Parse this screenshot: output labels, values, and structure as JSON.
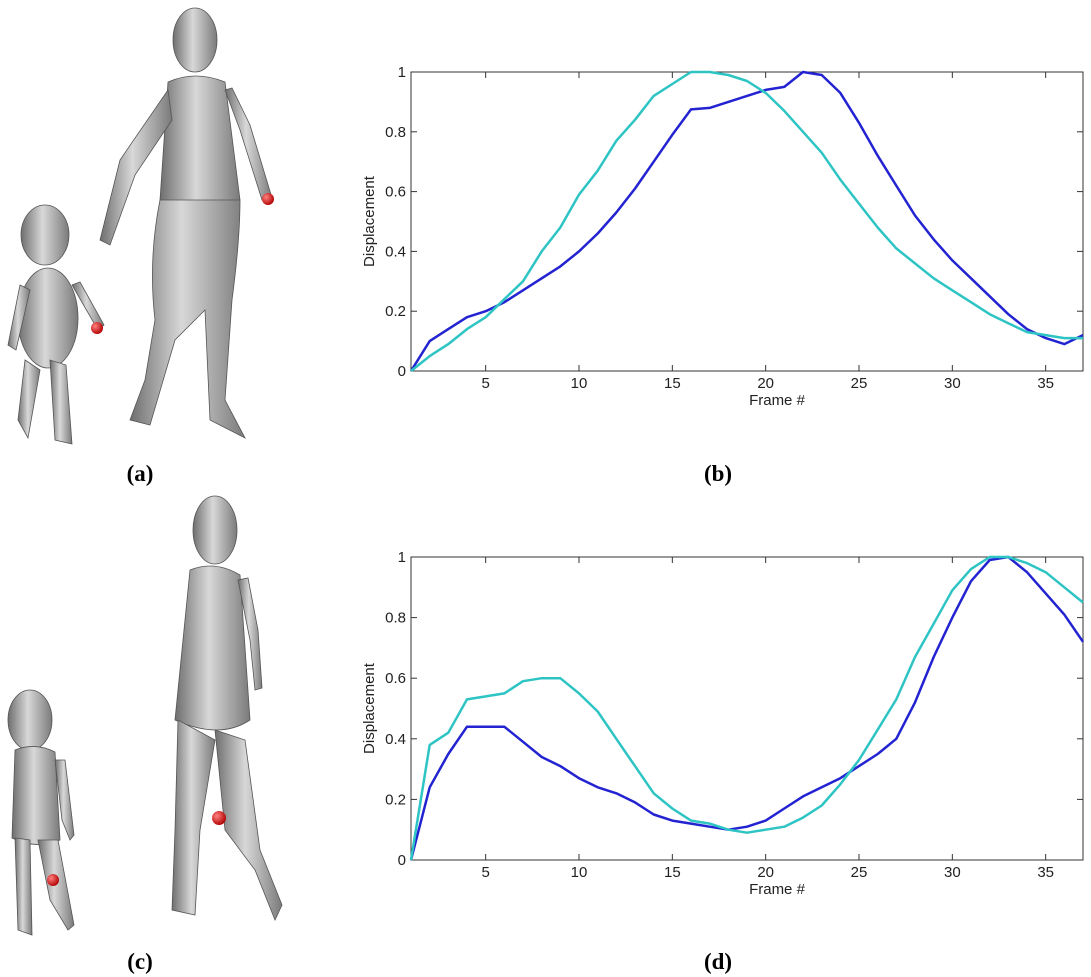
{
  "panel_labels": [
    "(a)",
    "(b)",
    "(c)",
    "(d)"
  ],
  "chart_data": [
    {
      "type": "line",
      "xlabel": "Frame #",
      "ylabel": "Displacement",
      "x": [
        1,
        2,
        3,
        4,
        5,
        6,
        7,
        8,
        9,
        10,
        11,
        12,
        13,
        14,
        15,
        16,
        17,
        18,
        19,
        20,
        21,
        22,
        23,
        24,
        25,
        26,
        27,
        28,
        29,
        30,
        31,
        32,
        33,
        34,
        35,
        36,
        37
      ],
      "xlim": [
        1,
        37
      ],
      "xticks": [
        5,
        10,
        15,
        20,
        25,
        30,
        35
      ],
      "ylim": [
        0,
        1
      ],
      "yticks": [
        0,
        0.2,
        0.4,
        0.6,
        0.8,
        1
      ],
      "series": [
        {
          "color": "#2323d2",
          "values": [
            0,
            0.1,
            0.14,
            0.18,
            0.2,
            0.23,
            0.27,
            0.31,
            0.35,
            0.4,
            0.46,
            0.53,
            0.61,
            0.7,
            0.79,
            0.875,
            0.88,
            0.9,
            0.92,
            0.94,
            0.95,
            1.0,
            0.99,
            0.93,
            0.83,
            0.72,
            0.62,
            0.52,
            0.44,
            0.37,
            0.31,
            0.25,
            0.19,
            0.14,
            0.11,
            0.09,
            0.12
          ]
        },
        {
          "color": "#2ec4c4",
          "values": [
            0,
            0.05,
            0.09,
            0.14,
            0.18,
            0.24,
            0.3,
            0.4,
            0.48,
            0.59,
            0.67,
            0.77,
            0.84,
            0.92,
            0.96,
            1.0,
            1.0,
            0.99,
            0.97,
            0.93,
            0.87,
            0.8,
            0.73,
            0.64,
            0.56,
            0.48,
            0.41,
            0.36,
            0.31,
            0.27,
            0.23,
            0.19,
            0.16,
            0.13,
            0.12,
            0.11,
            0.11
          ]
        }
      ]
    },
    {
      "type": "line",
      "xlabel": "Frame #",
      "ylabel": "Displacement",
      "x": [
        1,
        2,
        3,
        4,
        5,
        6,
        7,
        8,
        9,
        10,
        11,
        12,
        13,
        14,
        15,
        16,
        17,
        18,
        19,
        20,
        21,
        22,
        23,
        24,
        25,
        26,
        27,
        28,
        29,
        30,
        31,
        32,
        33,
        34,
        35,
        36,
        37
      ],
      "xlim": [
        1,
        37
      ],
      "xticks": [
        5,
        10,
        15,
        20,
        25,
        30,
        35
      ],
      "ylim": [
        0,
        1
      ],
      "yticks": [
        0,
        0.2,
        0.4,
        0.6,
        0.8,
        1
      ],
      "series": [
        {
          "color": "#2323d2",
          "values": [
            0,
            0.24,
            0.35,
            0.44,
            0.44,
            0.44,
            0.39,
            0.34,
            0.31,
            0.27,
            0.24,
            0.22,
            0.19,
            0.15,
            0.13,
            0.12,
            0.11,
            0.1,
            0.11,
            0.13,
            0.17,
            0.21,
            0.24,
            0.27,
            0.31,
            0.35,
            0.4,
            0.52,
            0.67,
            0.8,
            0.92,
            0.99,
            1.0,
            0.95,
            0.88,
            0.81,
            0.72
          ]
        },
        {
          "color": "#2ec4c4",
          "values": [
            0,
            0.38,
            0.42,
            0.53,
            0.54,
            0.55,
            0.59,
            0.6,
            0.6,
            0.55,
            0.49,
            0.4,
            0.31,
            0.22,
            0.17,
            0.13,
            0.12,
            0.1,
            0.09,
            0.1,
            0.11,
            0.14,
            0.18,
            0.25,
            0.33,
            0.43,
            0.53,
            0.67,
            0.78,
            0.89,
            0.96,
            1.0,
            1.0,
            0.98,
            0.95,
            0.9,
            0.85
          ]
        }
      ]
    }
  ]
}
